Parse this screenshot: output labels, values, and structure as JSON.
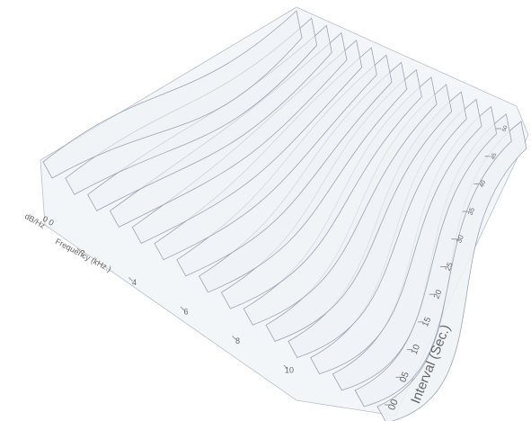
{
  "chart_data": {
    "type": "waterfall",
    "z_label": "dB/Hz",
    "zticks": [
      {
        "value": 0,
        "label": "0 0"
      }
    ],
    "x_label": "Frequency (kHz.)",
    "xlim": [
      0,
      12
    ],
    "xticks": [
      2,
      4,
      6,
      8,
      10
    ],
    "y_label": "Interval (Sec.)",
    "ylim": [
      0,
      50
    ],
    "yticks": [
      {
        "value": 0,
        "label": "00"
      },
      {
        "value": 5,
        "label": "05"
      },
      10,
      15,
      20,
      25,
      30,
      35,
      40,
      45,
      50
    ]
  }
}
